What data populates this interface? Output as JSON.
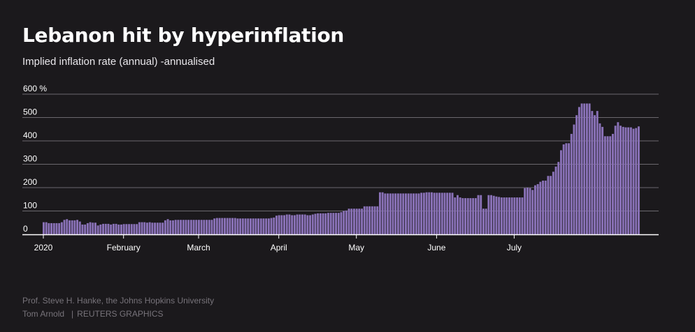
{
  "header": {
    "title": "Lebanon hit by hyperinflation",
    "subtitle": "Implied inflation rate (annual) -annualised"
  },
  "footer": {
    "source": "Prof. Steve H. Hanke, the Johns Hopkins University",
    "author": "Tom Arnold",
    "separator": "|",
    "brand": "REUTERS GRAPHICS"
  },
  "colors": {
    "background": "#1b191c",
    "bar": "#8a72b8",
    "gridline": "#6b686e",
    "baseline": "#ffffff",
    "text": "#ffffff",
    "footer_text": "#77737a"
  },
  "chart_data": {
    "type": "bar",
    "title": "Lebanon hit by hyperinflation",
    "subtitle": "Implied inflation rate (annual) -annualised",
    "y_unit": "%",
    "ylim": [
      0,
      600
    ],
    "y_ticks": [
      0,
      100,
      200,
      300,
      400,
      500,
      600
    ],
    "y_tick_labels": [
      "0",
      "100",
      "200",
      "300",
      "400",
      "500",
      "600 %"
    ],
    "x_ticks": [
      {
        "date": "2020-01-01",
        "label": "2020"
      },
      {
        "date": "2020-02-01",
        "label": "February"
      },
      {
        "date": "2020-03-01",
        "label": "March"
      },
      {
        "date": "2020-04-01",
        "label": "April"
      },
      {
        "date": "2020-05-01",
        "label": "May"
      },
      {
        "date": "2020-06-01",
        "label": "June"
      },
      {
        "date": "2020-07-01",
        "label": "July"
      }
    ],
    "grid": true,
    "legend": "none",
    "series": [
      {
        "start_date": "2020-01-01",
        "frequency": "daily",
        "values": [
          52,
          52,
          48,
          48,
          48,
          48,
          48,
          52,
          62,
          65,
          60,
          60,
          60,
          62,
          55,
          42,
          42,
          48,
          52,
          50,
          50,
          38,
          42,
          45,
          45,
          45,
          42,
          45,
          45,
          42,
          42,
          44,
          44,
          44,
          44,
          44,
          44,
          52,
          52,
          52,
          50,
          52,
          50,
          50,
          50,
          50,
          50,
          60,
          65,
          60,
          60,
          62,
          62,
          62,
          62,
          62,
          62,
          62,
          62,
          62,
          62,
          62,
          62,
          62,
          62,
          62,
          68,
          70,
          70,
          70,
          70,
          70,
          70,
          70,
          70,
          68,
          68,
          68,
          68,
          68,
          68,
          68,
          68,
          68,
          68,
          68,
          68,
          68,
          70,
          72,
          80,
          82,
          82,
          82,
          85,
          85,
          82,
          82,
          85,
          85,
          85,
          85,
          82,
          82,
          85,
          88,
          90,
          90,
          90,
          90,
          92,
          92,
          92,
          92,
          92,
          95,
          100,
          102,
          110,
          110,
          110,
          110,
          110,
          110,
          120,
          120,
          120,
          120,
          120,
          120,
          180,
          180,
          175,
          175,
          175,
          175,
          175,
          175,
          175,
          175,
          175,
          175,
          175,
          175,
          175,
          175,
          178,
          178,
          180,
          180,
          180,
          178,
          178,
          178,
          178,
          178,
          178,
          178,
          178,
          158,
          168,
          158,
          155,
          155,
          155,
          155,
          155,
          155,
          168,
          168,
          110,
          110,
          168,
          168,
          165,
          162,
          160,
          158,
          158,
          158,
          158,
          158,
          158,
          158,
          158,
          158,
          198,
          200,
          198,
          190,
          210,
          215,
          225,
          230,
          230,
          250,
          250,
          268,
          290,
          310,
          360,
          385,
          390,
          390,
          430,
          470,
          510,
          545,
          560,
          560,
          560,
          560,
          528,
          510,
          528,
          475,
          460,
          420,
          420,
          420,
          430,
          465,
          480,
          465,
          460,
          458,
          458,
          458,
          452,
          455,
          462
        ]
      }
    ]
  }
}
